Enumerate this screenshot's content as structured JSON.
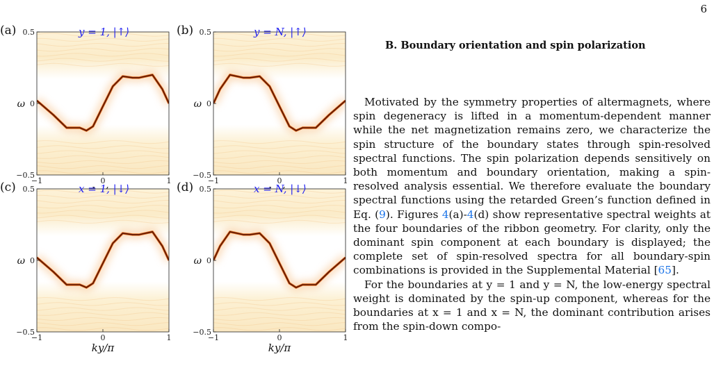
{
  "page_number": "6",
  "section": {
    "heading": "B.   Boundary orientation and spin polarization",
    "para1": [
      {
        "t": "Motivated by the symmetry properties of altermagnets, where spin degeneracy is lifted in a momentum-dependent manner while the net magnetization remains zero, we characterize the spin structure of the boundary states through spin-resolved spectral functions. The spin polarization depends sensitively on both momentum and boundary orientation, making a spin-resolved analysis essential. We therefore evaluate the boundary spectral functions using the retarded Green’s function defined in Eq. ("
      },
      {
        "t": "9",
        "link": true
      },
      {
        "t": "). Figures "
      },
      {
        "t": "4",
        "link": true
      },
      {
        "t": "(a)-"
      },
      {
        "t": "4",
        "link": true
      },
      {
        "t": "(d) show representative spectral weights at the four boundaries of the ribbon geometry. For clarity, only the dominant spin component at each boundary is displayed; the complete set of spin-resolved spectra for all boundary-spin combinations is provided in the Supplemental Material ["
      },
      {
        "t": "65",
        "link": true
      },
      {
        "t": "]."
      }
    ],
    "para2": "For the boundaries at y = 1 and y = N, the low-energy spectral weight is dominated by the spin-up component, whereas for the boundaries at x = 1 and x = N, the dominant contribution arises from the spin-down compo-"
  },
  "figure": {
    "panels": [
      {
        "label": "(a)",
        "annotation": "y = 1, |↑⟩",
        "xlabel": "kx/π",
        "ylabel": "ω"
      },
      {
        "label": "(b)",
        "annotation": "y = N, |↑⟩",
        "xlabel": "kx/π",
        "ylabel": "ω"
      },
      {
        "label": "(c)",
        "annotation": "x = 1, |↓⟩",
        "xlabel": "ky/π",
        "ylabel": "ω"
      },
      {
        "label": "(d)",
        "annotation": "x = N, |↓⟩",
        "xlabel": "ky/π",
        "ylabel": "ω"
      }
    ]
  },
  "chart_data": [
    {
      "type": "heatmap",
      "panel": "(a)",
      "annotation": "y = 1, |↑⟩",
      "xlabel": "kx/π",
      "ylabel": "ω",
      "xlim": [
        -1,
        1
      ],
      "ylim": [
        -0.5,
        0.5
      ],
      "xticks": [
        "−1",
        "0",
        "1"
      ],
      "yticks": [
        "−0.5",
        "0",
        "0.5"
      ],
      "colors": {
        "low": "#fffbee",
        "mid": "#f1c27d",
        "high": "#5a1500"
      },
      "band_x": [
        -1,
        -0.75,
        -0.55,
        -0.35,
        -0.25,
        -0.15,
        0,
        0.15,
        0.3,
        0.45,
        0.55,
        0.75,
        0.9,
        1
      ],
      "band_y": [
        0.02,
        -0.08,
        -0.17,
        -0.17,
        -0.19,
        -0.16,
        -0.02,
        0.12,
        0.19,
        0.18,
        0.18,
        0.2,
        0.1,
        0.0
      ]
    },
    {
      "type": "heatmap",
      "panel": "(b)",
      "annotation": "y = N, |↑⟩",
      "xlabel": "kx/π",
      "ylabel": "ω",
      "xlim": [
        -1,
        1
      ],
      "ylim": [
        -0.5,
        0.5
      ],
      "xticks": [
        "−1",
        "0",
        "1"
      ],
      "yticks": [
        "−0.5",
        "0",
        "0.5"
      ],
      "colors": {
        "low": "#fffbee",
        "mid": "#f1c27d",
        "high": "#5a1500"
      },
      "band_x": [
        -1,
        -0.9,
        -0.75,
        -0.55,
        -0.45,
        -0.3,
        -0.15,
        0,
        0.15,
        0.25,
        0.35,
        0.55,
        0.75,
        1
      ],
      "band_y": [
        0.0,
        0.1,
        0.2,
        0.18,
        0.18,
        0.19,
        0.12,
        -0.02,
        -0.16,
        -0.19,
        -0.17,
        -0.17,
        -0.08,
        0.02
      ]
    },
    {
      "type": "heatmap",
      "panel": "(c)",
      "annotation": "x = 1, |↓⟩",
      "xlabel": "ky/π",
      "ylabel": "ω",
      "xlim": [
        -1,
        1
      ],
      "ylim": [
        -0.5,
        0.5
      ],
      "xticks": [
        "−1",
        "0",
        "1"
      ],
      "yticks": [
        "−0.5",
        "0",
        "0.5"
      ],
      "colors": {
        "low": "#fffbee",
        "mid": "#f1c27d",
        "high": "#5a1500"
      },
      "band_x": [
        -1,
        -0.75,
        -0.55,
        -0.35,
        -0.25,
        -0.15,
        0,
        0.15,
        0.3,
        0.45,
        0.55,
        0.75,
        0.9,
        1
      ],
      "band_y": [
        0.02,
        -0.08,
        -0.17,
        -0.17,
        -0.19,
        -0.16,
        -0.02,
        0.12,
        0.19,
        0.18,
        0.18,
        0.2,
        0.1,
        0.0
      ]
    },
    {
      "type": "heatmap",
      "panel": "(d)",
      "annotation": "x = N, |↓⟩",
      "xlabel": "ky/π",
      "ylabel": "ω",
      "xlim": [
        -1,
        1
      ],
      "ylim": [
        -0.5,
        0.5
      ],
      "xticks": [
        "−1",
        "0",
        "1"
      ],
      "yticks": [
        "−0.5",
        "0",
        "0.5"
      ],
      "colors": {
        "low": "#fffbee",
        "mid": "#f1c27d",
        "high": "#5a1500"
      },
      "band_x": [
        -1,
        -0.9,
        -0.75,
        -0.55,
        -0.45,
        -0.3,
        -0.15,
        0,
        0.15,
        0.25,
        0.35,
        0.55,
        0.75,
        1
      ],
      "band_y": [
        0.0,
        0.1,
        0.2,
        0.18,
        0.18,
        0.19,
        0.12,
        -0.02,
        -0.16,
        -0.19,
        -0.17,
        -0.17,
        -0.08,
        0.02
      ]
    }
  ]
}
